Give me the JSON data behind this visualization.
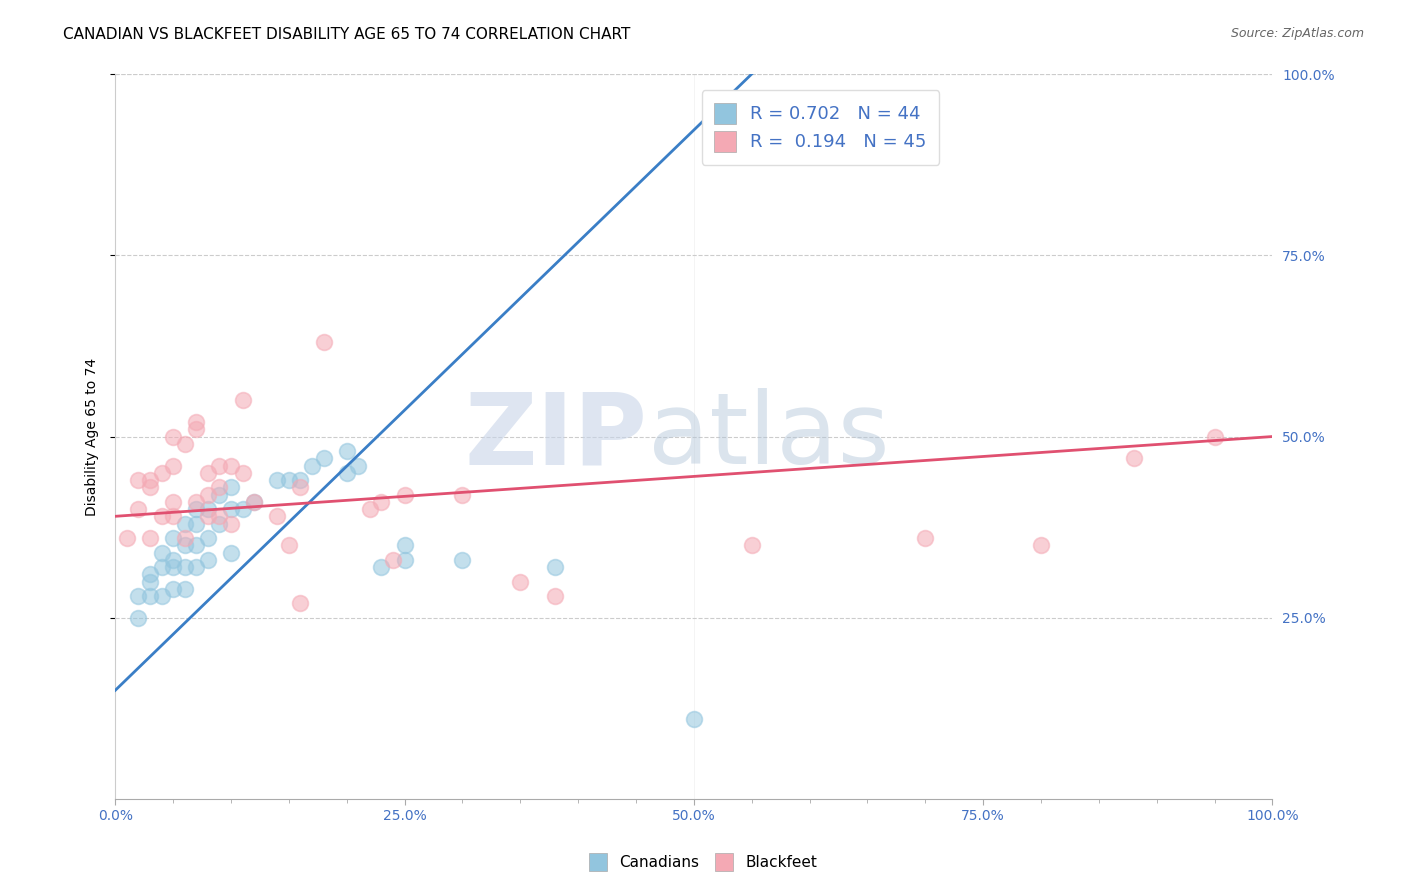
{
  "title": "CANADIAN VS BLACKFEET DISABILITY AGE 65 TO 74 CORRELATION CHART",
  "source": "Source: ZipAtlas.com",
  "ylabel": "Disability Age 65 to 74",
  "xlim": [
    0,
    100
  ],
  "ylim": [
    0,
    100
  ],
  "xtick_labels": [
    "0.0%",
    "",
    "",
    "",
    "",
    "25.0%",
    "",
    "",
    "",
    "",
    "50.0%",
    "",
    "",
    "",
    "",
    "75.0%",
    "",
    "",
    "",
    "",
    "100.0%"
  ],
  "xtick_positions": [
    0,
    5,
    10,
    15,
    20,
    25,
    30,
    35,
    40,
    45,
    50,
    55,
    60,
    65,
    70,
    75,
    80,
    85,
    90,
    95,
    100
  ],
  "xtick_major_labels": [
    "0.0%",
    "25.0%",
    "50.0%",
    "75.0%",
    "100.0%"
  ],
  "xtick_major_positions": [
    0,
    25,
    50,
    75,
    100
  ],
  "ytick_labels_right": [
    "25.0%",
    "50.0%",
    "75.0%",
    "100.0%"
  ],
  "ytick_positions_right": [
    25,
    50,
    75,
    100
  ],
  "canadian_color": "#92C5DE",
  "blackfeet_color": "#F4A9B4",
  "canadian_line_color": "#3A7EC6",
  "blackfeet_line_color": "#E05070",
  "canadian_R": 0.702,
  "canadian_N": 44,
  "blackfeet_R": 0.194,
  "blackfeet_N": 45,
  "canadian_scatter_x": [
    2,
    2,
    3,
    3,
    3,
    4,
    4,
    4,
    5,
    5,
    5,
    5,
    6,
    6,
    6,
    6,
    7,
    7,
    7,
    7,
    8,
    8,
    8,
    9,
    9,
    10,
    10,
    10,
    11,
    12,
    14,
    15,
    16,
    17,
    18,
    20,
    20,
    21,
    23,
    25,
    25,
    30,
    38,
    50
  ],
  "canadian_scatter_y": [
    25,
    28,
    28,
    30,
    31,
    28,
    32,
    34,
    29,
    32,
    33,
    36,
    29,
    32,
    35,
    38,
    32,
    35,
    38,
    40,
    33,
    36,
    40,
    38,
    42,
    34,
    40,
    43,
    40,
    41,
    44,
    44,
    44,
    46,
    47,
    45,
    48,
    46,
    32,
    33,
    35,
    33,
    32,
    11
  ],
  "blackfeet_scatter_x": [
    1,
    2,
    2,
    3,
    3,
    3,
    4,
    4,
    5,
    5,
    5,
    5,
    6,
    6,
    7,
    7,
    7,
    8,
    8,
    8,
    9,
    9,
    9,
    10,
    10,
    11,
    11,
    12,
    14,
    15,
    16,
    16,
    18,
    22,
    23,
    24,
    25,
    30,
    35,
    38,
    55,
    70,
    80,
    88,
    95
  ],
  "blackfeet_scatter_y": [
    36,
    40,
    44,
    36,
    43,
    44,
    39,
    45,
    39,
    41,
    46,
    50,
    36,
    49,
    41,
    51,
    52,
    42,
    39,
    45,
    39,
    43,
    46,
    38,
    46,
    45,
    55,
    41,
    39,
    35,
    27,
    43,
    63,
    40,
    41,
    33,
    42,
    42,
    30,
    28,
    35,
    36,
    35,
    47,
    50
  ],
  "canadian_line_x": [
    0,
    55
  ],
  "canadian_line_y": [
    15,
    100
  ],
  "blackfeet_line_x": [
    0,
    100
  ],
  "blackfeet_line_y": [
    39,
    50
  ],
  "title_fontsize": 11,
  "label_fontsize": 10,
  "tick_fontsize": 10,
  "legend_fontsize": 13,
  "source_fontsize": 9
}
